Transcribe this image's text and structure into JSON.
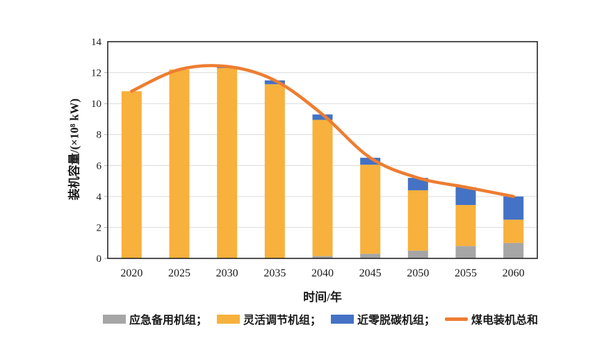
{
  "figure": {
    "background": "#ffffff",
    "x_axis_title": "时间/年",
    "y_axis_title": "装机容量/(×10⁸ kW)"
  },
  "chart_data": {
    "type": "bar",
    "stacked": true,
    "title": "",
    "xlabel": "时间/年",
    "ylabel": "装机容量/(×10⁸ kW)",
    "categories": [
      "2020",
      "2025",
      "2030",
      "2035",
      "2040",
      "2045",
      "2050",
      "2055",
      "2060"
    ],
    "series": [
      {
        "name": "应急备用机组",
        "type": "bar",
        "color": "#A6A6A6",
        "values": [
          0,
          0,
          0,
          0,
          0.15,
          0.3,
          0.5,
          0.8,
          1.0
        ]
      },
      {
        "name": "灵活调节机组",
        "type": "bar",
        "color": "#F7B13C",
        "values": [
          10.8,
          12.2,
          12.3,
          11.25,
          8.8,
          5.75,
          3.9,
          2.65,
          1.5
        ]
      },
      {
        "name": "近零脱碳机组",
        "type": "bar",
        "color": "#4472C4",
        "values": [
          0,
          0,
          0.1,
          0.25,
          0.35,
          0.45,
          0.8,
          1.15,
          1.5
        ]
      },
      {
        "name": "煤电装机总和",
        "type": "line",
        "color": "#ED7D31",
        "values": [
          10.8,
          12.2,
          12.4,
          11.5,
          9.3,
          6.5,
          5.2,
          4.6,
          4.0
        ]
      }
    ],
    "ylim": [
      0,
      14
    ],
    "y_ticks": [
      0,
      2,
      4,
      6,
      8,
      10,
      12,
      14
    ],
    "grid": true,
    "grid_color": "#d9d9d9",
    "border_color": "#262626",
    "tick_label_color": "#1a1a1a",
    "legend_position": "bottom"
  },
  "legend": {
    "items": [
      {
        "label": "应急备用机组；",
        "swatch": "bar",
        "color": "#A6A6A6"
      },
      {
        "label": "灵活调节机组；",
        "swatch": "bar",
        "color": "#F7B13C"
      },
      {
        "label": "近零脱碳机组；",
        "swatch": "bar",
        "color": "#4472C4"
      },
      {
        "label": "煤电装机总和",
        "swatch": "line",
        "color": "#ED7D31"
      }
    ]
  }
}
